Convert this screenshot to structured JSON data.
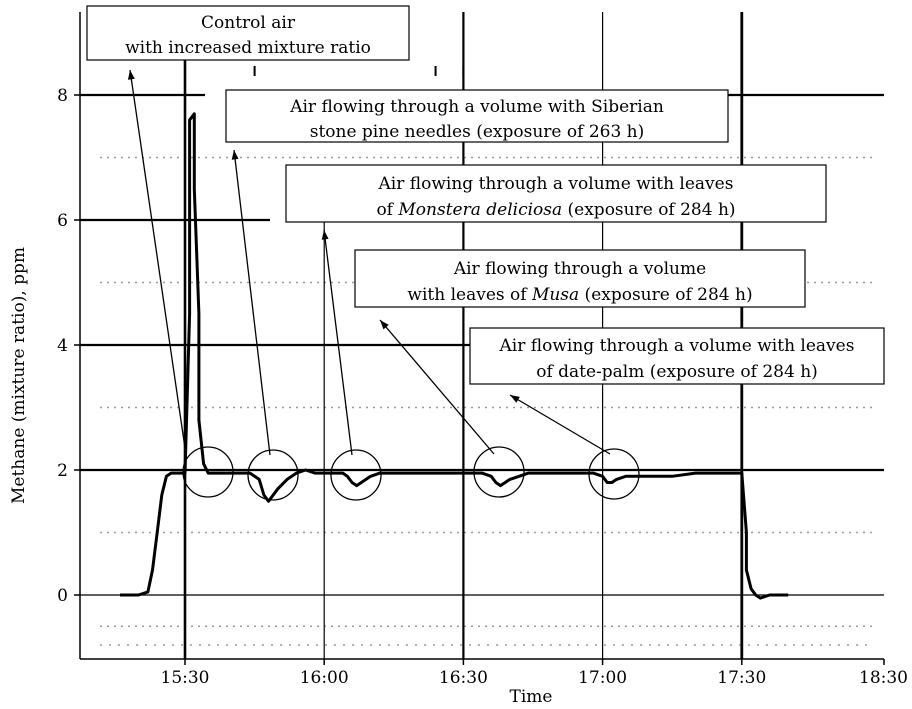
{
  "chart_data": {
    "type": "line",
    "title": "",
    "xlabel": "Time",
    "ylabel": "Methane (mixture ratio), ppm",
    "x_ticks": [
      "15:30",
      "16:00",
      "16:30",
      "17:00",
      "17:30",
      "18:30"
    ],
    "y_ticks": [
      "0",
      "2",
      "4",
      "6",
      "8"
    ],
    "xlim": [
      "15:05",
      "18:30"
    ],
    "ylim": [
      -1.0,
      8.5
    ],
    "grid": true,
    "series": [
      {
        "x": [
          "15:16",
          "15:20",
          "15:22",
          "15:23",
          "15:24",
          "15:25",
          "15:26",
          "15:27",
          "15:28",
          "15:29",
          "15:30",
          "15:31",
          "15:31",
          "15:32",
          "15:32",
          "15:33",
          "15:33",
          "15:34",
          "15:35",
          "15:36",
          "15:38",
          "15:40",
          "15:42",
          "15:44",
          "15:46",
          "15:47",
          "15:48",
          "15:49",
          "15:50",
          "15:52",
          "15:54",
          "15:56",
          "15:58",
          "16:00",
          "16:02",
          "16:04",
          "16:05",
          "16:06",
          "16:07",
          "16:08",
          "16:10",
          "16:12",
          "16:14",
          "16:16",
          "16:20",
          "16:30",
          "16:34",
          "16:36",
          "16:37",
          "16:38",
          "16:39",
          "16:40",
          "16:42",
          "16:44",
          "16:50",
          "16:58",
          "17:00",
          "17:01",
          "17:02",
          "17:03",
          "17:05",
          "17:08",
          "17:15",
          "17:20",
          "17:25",
          "17:29",
          "17:30",
          "17:31",
          "17:31",
          "17:32",
          "17:33",
          "17:34",
          "17:36",
          "17:40"
        ],
        "y": [
          0.0,
          0.0,
          0.05,
          0.4,
          1.0,
          1.6,
          1.9,
          1.95,
          1.95,
          1.95,
          1.95,
          4.5,
          7.6,
          7.7,
          6.5,
          4.5,
          2.8,
          2.1,
          1.95,
          1.95,
          1.95,
          1.95,
          1.95,
          1.95,
          1.85,
          1.6,
          1.5,
          1.6,
          1.7,
          1.85,
          1.95,
          2.0,
          1.95,
          1.95,
          1.95,
          1.95,
          1.9,
          1.8,
          1.75,
          1.8,
          1.9,
          1.95,
          1.95,
          1.95,
          1.95,
          1.95,
          1.95,
          1.9,
          1.8,
          1.75,
          1.8,
          1.85,
          1.9,
          1.95,
          1.95,
          1.95,
          1.9,
          1.8,
          1.8,
          1.85,
          1.9,
          1.9,
          1.9,
          1.95,
          1.95,
          1.95,
          1.95,
          1.0,
          0.4,
          0.1,
          0.0,
          -0.05,
          0.0,
          0.0
        ]
      }
    ],
    "annotations": [
      {
        "lines": [
          "Control air",
          "with increased mixture ratio"
        ]
      },
      {
        "lines": [
          "Air flowing through a volume with Siberian",
          "stone pine needles (exposure of 263 h)"
        ]
      },
      {
        "lines": [
          [
            "Air flowing through a volume with leaves"
          ],
          [
            "of ",
            {
              "i": "Monstera deliciosa"
            },
            " (exposure of 284 h)"
          ]
        ]
      },
      {
        "lines": [
          [
            "Air flowing through a volume"
          ],
          [
            "with leaves of ",
            {
              "i": "Musa"
            },
            " (exposure of 284 h)"
          ]
        ]
      },
      {
        "lines": [
          "Air flowing through a volume with leaves",
          "of date-palm (exposure of 284 h)"
        ]
      }
    ]
  }
}
